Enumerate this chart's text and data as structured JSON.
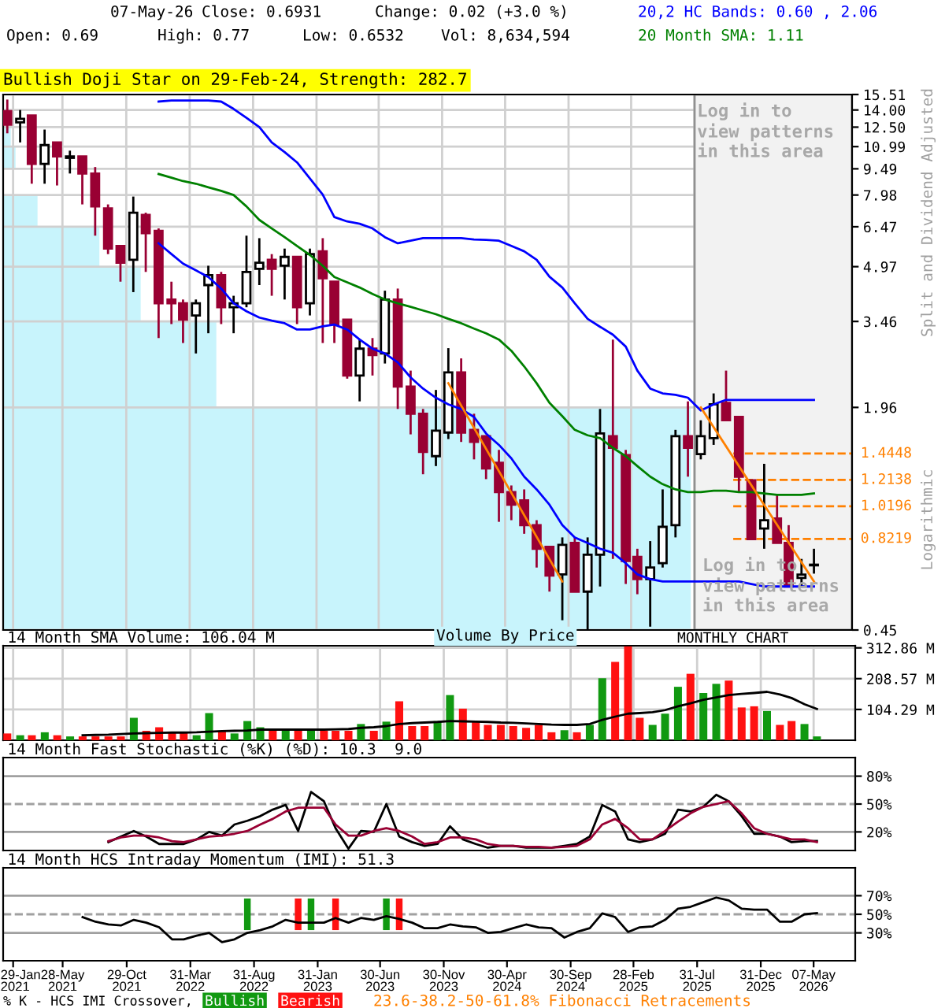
{
  "chart_data": [
    {
      "type": "candlestick",
      "log": true,
      "grid": true,
      "tick_labels": "y",
      "legend": "top right",
      "x": [
        "2021-01-15",
        "2021-02-15",
        "2021-03-15",
        "2021-04-15",
        "2021-05-15",
        "2021-06-15",
        "2021-07-15",
        "2021-08-15",
        "2021-09-15",
        "2021-10-15",
        "2021-11-15",
        "2021-12-15",
        "2022-01-15",
        "2022-02-15",
        "2022-03-15",
        "2022-04-15",
        "2022-05-15",
        "2022-06-15",
        "2022-07-15",
        "2022-08-15",
        "2022-09-15",
        "2022-10-15",
        "2022-11-15",
        "2022-12-15",
        "2023-01-15",
        "2023-02-15",
        "2023-03-15",
        "2023-04-15",
        "2023-05-15",
        "2023-06-15",
        "2023-07-15",
        "2023-08-15",
        "2023-09-15",
        "2023-10-15",
        "2023-11-15",
        "2023-12-15",
        "2024-01-15",
        "2024-02-15",
        "2024-03-15",
        "2024-04-15",
        "2024-05-15",
        "2024-06-15",
        "2024-07-15",
        "2024-08-15",
        "2024-09-15",
        "2024-10-15",
        "2024-11-15",
        "2024-12-15",
        "2025-01-15",
        "2025-02-15",
        "2025-03-15",
        "2025-04-15",
        "2025-05-15",
        "2025-06-15",
        "2025-07-15",
        "2025-08-15",
        "2025-09-15",
        "2025-10-15",
        "2025-11-15",
        "2025-12-15",
        "2026-01-15",
        "2026-02-15",
        "2026-03-15",
        "2026-04-15",
        "2026-05-15"
      ],
      "ohlc": [
        [
          13.9,
          15.0,
          12.0,
          12.7
        ],
        [
          12.9,
          14.0,
          11.3,
          13.2
        ],
        [
          13.5,
          13.5,
          8.6,
          9.8
        ],
        [
          9.8,
          12.3,
          8.6,
          11.1
        ],
        [
          11.3,
          11.3,
          8.5,
          10.3
        ],
        [
          10.2,
          10.7,
          9.2,
          10.3
        ],
        [
          10.3,
          10.3,
          7.5,
          9.2
        ],
        [
          9.2,
          9.6,
          6.1,
          7.4
        ],
        [
          7.3,
          7.5,
          5.4,
          5.6
        ],
        [
          5.7,
          5.7,
          4.5,
          5.1
        ],
        [
          5.2,
          7.9,
          4.2,
          7.1
        ],
        [
          7.0,
          7.1,
          4.8,
          6.2
        ],
        [
          6.3,
          6.4,
          3.1,
          3.9
        ],
        [
          4.0,
          4.5,
          3.4,
          3.9
        ],
        [
          3.9,
          4.0,
          3.0,
          3.5
        ],
        [
          3.6,
          4.0,
          2.8,
          3.9
        ],
        [
          4.4,
          5.0,
          3.2,
          4.7
        ],
        [
          4.7,
          4.8,
          3.4,
          3.8
        ],
        [
          3.8,
          4.1,
          3.2,
          3.9
        ],
        [
          3.9,
          6.1,
          3.8,
          4.8
        ],
        [
          4.9,
          6.0,
          4.4,
          5.1
        ],
        [
          5.2,
          5.4,
          4.1,
          4.9
        ],
        [
          5.0,
          5.6,
          4.0,
          5.3
        ],
        [
          5.3,
          5.3,
          3.4,
          3.8
        ],
        [
          3.9,
          5.6,
          3.6,
          5.4
        ],
        [
          5.5,
          6.0,
          3.0,
          4.6
        ],
        [
          4.5,
          4.5,
          3.0,
          3.4
        ],
        [
          3.5,
          3.5,
          2.37,
          2.42
        ],
        [
          2.42,
          3.07,
          2.04,
          2.89
        ],
        [
          2.89,
          3.1,
          2.42,
          2.77
        ],
        [
          2.8,
          4.24,
          2.62,
          4.0
        ],
        [
          4.0,
          4.3,
          1.94,
          2.25
        ],
        [
          2.25,
          2.5,
          1.64,
          1.88
        ],
        [
          1.88,
          1.94,
          1.26,
          1.46
        ],
        [
          1.42,
          2.2,
          1.33,
          1.68
        ],
        [
          1.66,
          2.9,
          1.59,
          2.47
        ],
        [
          2.47,
          2.71,
          1.56,
          1.66
        ],
        [
          1.69,
          1.88,
          1.39,
          1.56
        ],
        [
          1.62,
          1.62,
          1.22,
          1.31
        ],
        [
          1.36,
          1.48,
          0.92,
          1.12
        ],
        [
          1.12,
          1.17,
          0.93,
          1.03
        ],
        [
          1.06,
          1.14,
          0.85,
          0.9
        ],
        [
          0.9,
          0.93,
          0.68,
          0.77
        ],
        [
          0.78,
          0.78,
          0.58,
          0.645
        ],
        [
          0.65,
          0.83,
          0.48,
          0.79
        ],
        [
          0.8,
          0.83,
          0.58,
          0.58
        ],
        [
          0.58,
          0.83,
          0.45,
          0.74
        ],
        [
          0.74,
          1.94,
          0.6,
          1.65
        ],
        [
          1.62,
          3.07,
          0.72,
          1.5
        ],
        [
          1.43,
          1.48,
          0.61,
          0.71
        ],
        [
          0.73,
          0.77,
          0.57,
          0.63
        ],
        [
          0.63,
          0.81,
          0.46,
          0.68
        ],
        [
          0.7,
          1.14,
          0.68,
          0.89
        ],
        [
          0.9,
          1.69,
          0.83,
          1.62
        ],
        [
          1.62,
          2.04,
          1.24,
          1.5
        ],
        [
          1.44,
          1.8,
          1.39,
          1.62
        ],
        [
          1.6,
          2.15,
          1.53,
          2.0
        ],
        [
          2.02,
          2.5,
          1.8,
          1.8
        ],
        [
          1.84,
          1.84,
          1.12,
          1.24
        ],
        [
          1.21,
          1.21,
          0.82,
          0.82
        ],
        [
          0.88,
          1.35,
          0.77,
          0.93
        ],
        [
          0.94,
          1.1,
          0.8,
          0.8
        ],
        [
          0.8,
          0.9,
          0.596,
          0.6
        ],
        [
          0.635,
          0.72,
          0.596,
          0.649
        ],
        [
          0.69,
          0.77,
          0.6532,
          0.6931
        ]
      ],
      "colors": [
        "#990033",
        "#ffffff",
        "#990033",
        "#ffffff",
        "#990033",
        "#ffffff",
        "#990033",
        "#990033",
        "#990033",
        "#990033",
        "#ffffff",
        "#990033",
        "#990033",
        "#990033",
        "#990033",
        "#ffffff",
        "#ffffff",
        "#990033",
        "#ffffff",
        "#ffffff",
        "#ffffff",
        "#990033",
        "#ffffff",
        "#990033",
        "#ffffff",
        "#990033",
        "#990033",
        "#990033",
        "#ffffff",
        "#990033",
        "#ffffff",
        "#990033",
        "#990033",
        "#990033",
        "#ffffff",
        "#ffffff",
        "#990033",
        "#990033",
        "#990033",
        "#990033",
        "#990033",
        "#990033",
        "#990033",
        "#990033",
        "#ffffff",
        "#990033",
        "#ffffff",
        "#ffffff",
        "#990033",
        "#990033",
        "#990033",
        "#ffffff",
        "#ffffff",
        "#ffffff",
        "#990033",
        "#ffffff",
        "#ffffff",
        "#990033",
        "#990033",
        "#990033",
        "#ffffff",
        "#990033",
        "#990033",
        "#ffffff",
        "#ffffff"
      ],
      "series": [
        {
          "type": "line",
          "name": "20,2 HC Bands: 0.60 , 2.06",
          "color": "#0000ff",
          "x": [
            "2022-01-15",
            "2022-02-15",
            "2022-03-15",
            "2022-04-15",
            "2022-05-15",
            "2022-06-15",
            "2022-07-15",
            "2022-08-15",
            "2022-09-15",
            "2022-10-15",
            "2022-11-15",
            "2022-12-15",
            "2023-01-15",
            "2023-02-15",
            "2023-03-15",
            "2023-04-15",
            "2023-05-15",
            "2023-06-15",
            "2023-07-15",
            "2023-08-15",
            "2023-09-15",
            "2023-10-15",
            "2023-11-15",
            "2023-12-15",
            "2024-01-15",
            "2024-02-15",
            "2024-03-15",
            "2024-04-15",
            "2024-05-15",
            "2024-06-15",
            "2024-07-15",
            "2024-08-15",
            "2024-09-15",
            "2024-10-15",
            "2024-11-15",
            "2024-12-15",
            "2025-01-15",
            "2025-02-15",
            "2025-03-15",
            "2025-04-15",
            "2025-05-15",
            "2025-06-15",
            "2025-07-15",
            "2025-08-15",
            "2025-09-15",
            "2025-10-15",
            "2025-11-15",
            "2025-12-15",
            "2026-01-15",
            "2026-02-15",
            "2026-03-15",
            "2026-04-15",
            "2026-05-15"
          ],
          "values": [
            14.8,
            14.9,
            14.9,
            14.9,
            14.9,
            14.8,
            14.1,
            13.3,
            12.5,
            11.3,
            10.6,
            9.9,
            8.9,
            8.0,
            6.9,
            6.7,
            6.6,
            6.4,
            6.04,
            5.8,
            5.9,
            6.0,
            6.0,
            6.0,
            6.0,
            5.95,
            5.93,
            5.9,
            5.7,
            5.5,
            5.2,
            4.65,
            4.33,
            3.9,
            3.52,
            3.34,
            3.17,
            2.93,
            2.5,
            2.22,
            2.15,
            2.13,
            2.09,
            1.92,
            2.0,
            2.06,
            2.06,
            2.06,
            2.06,
            2.06,
            2.06,
            2.06,
            2.06
          ]
        },
        {
          "type": "line",
          "color": "#0000ff",
          "x": [
            "2022-01-15",
            "2022-02-15",
            "2022-03-15",
            "2022-04-15",
            "2022-05-15",
            "2022-06-15",
            "2022-07-15",
            "2022-08-15",
            "2022-09-15",
            "2022-10-15",
            "2022-11-15",
            "2022-12-15",
            "2023-01-15",
            "2023-02-15",
            "2023-03-15",
            "2023-04-15",
            "2023-05-15",
            "2023-06-15",
            "2023-07-15",
            "2023-08-15",
            "2023-09-15",
            "2023-10-15",
            "2023-11-15",
            "2023-12-15",
            "2024-01-15",
            "2024-02-15",
            "2024-03-15",
            "2024-04-15",
            "2024-05-15",
            "2024-06-15",
            "2024-07-15",
            "2024-08-15",
            "2024-09-15",
            "2024-10-15",
            "2024-11-15",
            "2024-12-15",
            "2025-01-15",
            "2025-02-15",
            "2025-03-15",
            "2025-04-15",
            "2025-05-15",
            "2025-06-15",
            "2025-07-15",
            "2025-08-15",
            "2025-09-15",
            "2025-10-15",
            "2025-11-15",
            "2025-12-15",
            "2026-01-15",
            "2026-02-15",
            "2026-03-15",
            "2026-04-15",
            "2026-05-15"
          ],
          "values": [
            5.8,
            5.4,
            5.07,
            4.85,
            4.64,
            4.3,
            3.9,
            3.7,
            3.55,
            3.48,
            3.42,
            3.28,
            3.28,
            3.35,
            3.39,
            3.28,
            3.07,
            2.89,
            2.8,
            2.64,
            2.39,
            2.22,
            2.09,
            2.0,
            1.94,
            1.84,
            1.65,
            1.53,
            1.4,
            1.24,
            1.14,
            1.03,
            0.9,
            0.83,
            0.8,
            0.77,
            0.75,
            0.7,
            0.65,
            0.63,
            0.62,
            0.62,
            0.62,
            0.62,
            0.62,
            0.62,
            0.62,
            0.61,
            0.6,
            0.6,
            0.6,
            0.6,
            0.6
          ]
        },
        {
          "type": "line",
          "name": "20 Month SMA: 1.11",
          "color": "#008000",
          "x": [
            "2022-01-15",
            "2022-02-15",
            "2022-03-15",
            "2022-04-15",
            "2022-05-15",
            "2022-06-15",
            "2022-07-15",
            "2022-08-15",
            "2022-09-15",
            "2022-10-15",
            "2022-11-15",
            "2022-12-15",
            "2023-01-15",
            "2023-02-15",
            "2023-03-15",
            "2023-04-15",
            "2023-05-15",
            "2023-06-15",
            "2023-07-15",
            "2023-08-15",
            "2023-09-15",
            "2023-10-15",
            "2023-11-15",
            "2023-12-15",
            "2024-01-15",
            "2024-02-15",
            "2024-03-15",
            "2024-04-15",
            "2024-05-15",
            "2024-06-15",
            "2024-07-15",
            "2024-08-15",
            "2024-09-15",
            "2024-10-15",
            "2024-11-15",
            "2024-12-15",
            "2025-01-15",
            "2025-02-15",
            "2025-03-15",
            "2025-04-15",
            "2025-05-15",
            "2025-06-15",
            "2025-07-15",
            "2025-08-15",
            "2025-09-15",
            "2025-10-15",
            "2025-11-15",
            "2025-12-15",
            "2026-01-15",
            "2026-02-15",
            "2026-03-15",
            "2026-04-15",
            "2026-05-15"
          ],
          "values": [
            9.17,
            8.95,
            8.75,
            8.6,
            8.4,
            8.2,
            7.98,
            7.4,
            6.77,
            6.4,
            6.04,
            5.7,
            5.37,
            5.0,
            4.64,
            4.48,
            4.33,
            4.15,
            4.0,
            3.9,
            3.81,
            3.72,
            3.63,
            3.52,
            3.42,
            3.3,
            3.2,
            3.07,
            2.85,
            2.57,
            2.3,
            2.02,
            1.85,
            1.69,
            1.63,
            1.6,
            1.5,
            1.42,
            1.33,
            1.24,
            1.18,
            1.14,
            1.12,
            1.12,
            1.13,
            1.13,
            1.12,
            1.12,
            1.11,
            1.1,
            1.1,
            1.1,
            1.11
          ]
        },
        {
          "type": "line",
          "color": "#ff8000",
          "x": [
            "2023-12-15",
            "2024-09-15"
          ],
          "values": [
            2.3,
            0.62
          ]
        },
        {
          "type": "line",
          "color": "#ff8000",
          "x": [
            "2025-08-15",
            "2026-05-15"
          ],
          "values": [
            1.96,
            0.62
          ]
        }
      ],
      "xlim": [
        "2021-01-05",
        "2026-08-15"
      ],
      "ylim": [
        0.45,
        15.51
      ],
      "xticks": [
        {
          "value": "2021-01-29",
          "label": null
        },
        {
          "value": "2021-05-28",
          "label": null
        },
        {
          "value": "2021-10-29",
          "label": null
        },
        {
          "value": "2022-03-31",
          "label": null
        },
        {
          "value": "2022-08-31",
          "label": null
        },
        {
          "value": "2023-01-31",
          "label": null
        },
        {
          "value": "2023-06-30",
          "label": null
        },
        {
          "value": "2023-11-30",
          "label": null
        },
        {
          "value": "2024-04-30",
          "label": null
        },
        {
          "value": "2024-09-30",
          "label": null
        },
        {
          "value": "2025-02-28",
          "label": null
        },
        {
          "value": "2025-07-31",
          "label": null
        },
        {
          "value": "2025-12-31",
          "label": null
        },
        {
          "value": "2026-05-07",
          "label": null
        }
      ],
      "yticks": [
        0.45,
        1.96,
        3.46,
        4.97,
        6.47,
        7.98,
        9.49,
        10.99,
        {
          "value": 12.5,
          "label": "12.50"
        },
        {
          "value": 14.0,
          "label": "14.00"
        },
        15.51
      ],
      "bands": [
        {
          "axis": "x",
          "from": "2025-07-31",
          "to": "2026-08-15",
          "label": "Log in to\nview patterns\nin this area",
          "color": "#f2f2f2"
        }
      ],
      "ref_lines": [
        {
          "axis": "y",
          "value": 1.4448,
          "label": "1.4448",
          "color": "#ff8000",
          "line_style": "dashed"
        },
        {
          "axis": "y",
          "value": 1.2138,
          "label": "1.2138",
          "color": "#ff8000",
          "line_style": "dashed"
        },
        {
          "axis": "y",
          "value": 1.0196,
          "label": "1.0196",
          "color": "#ff8000",
          "line_style": "dashed"
        },
        {
          "axis": "y",
          "value": 0.8219,
          "label": "0.8219",
          "color": "#ff8000",
          "line_style": "dashed"
        }
      ],
      "annotations": [
        "07-May-26",
        "Close: 0.6931",
        "Change: 0.02 (+3.0 %)",
        "Open: 0.69",
        "High: 0.77",
        "Low: 0.6532",
        "Vol: 8,634,594",
        "Bullish Doji Star on 29-Feb-24, Strength: 282.7",
        "Log in to\nview patterns\nin this area",
        "Split and Dividend Adjusted",
        "Logarithmic",
        "MONTHLY CHART",
        "23.6-38.2-50-61.8% Fibonacci Retracements",
        "Volume By Price"
      ]
    },
    {
      "type": "bar",
      "title": "14 Month SMA Volume: 106.04 M",
      "grid": true,
      "tick_labels": "y",
      "x": [
        "2021-01-15",
        "2021-02-15",
        "2021-03-15",
        "2021-04-15",
        "2021-05-15",
        "2021-06-15",
        "2021-07-15",
        "2021-08-15",
        "2021-09-15",
        "2021-10-15",
        "2021-11-15",
        "2021-12-15",
        "2022-01-15",
        "2022-02-15",
        "2022-03-15",
        "2022-04-15",
        "2022-05-15",
        "2022-06-15",
        "2022-07-15",
        "2022-08-15",
        "2022-09-15",
        "2022-10-15",
        "2022-11-15",
        "2022-12-15",
        "2023-01-15",
        "2023-02-15",
        "2023-03-15",
        "2023-04-15",
        "2023-05-15",
        "2023-06-15",
        "2023-07-15",
        "2023-08-15",
        "2023-09-15",
        "2023-10-15",
        "2023-11-15",
        "2023-12-15",
        "2024-01-15",
        "2024-02-15",
        "2024-03-15",
        "2024-04-15",
        "2024-05-15",
        "2024-06-15",
        "2024-07-15",
        "2024-08-15",
        "2024-09-15",
        "2024-10-15",
        "2024-11-15",
        "2024-12-15",
        "2025-01-15",
        "2025-02-15",
        "2025-03-15",
        "2025-04-15",
        "2025-05-15",
        "2025-06-15",
        "2025-07-15",
        "2025-08-15",
        "2025-09-15",
        "2025-10-15",
        "2025-11-15",
        "2025-12-15",
        "2026-01-15",
        "2026-02-15",
        "2026-03-15",
        "2026-04-15",
        "2026-05-15"
      ],
      "values": [
        23,
        17,
        17,
        27,
        17,
        13,
        13,
        13,
        13,
        13,
        76,
        32,
        44,
        27,
        27,
        17,
        92,
        32,
        23,
        65,
        44,
        32,
        32,
        32,
        36,
        32,
        32,
        32,
        55,
        32,
        63,
        132,
        48,
        48,
        65,
        153,
        107,
        63,
        52,
        52,
        48,
        42,
        52,
        27,
        34,
        27,
        52,
        210,
        265,
        318,
        76,
        52,
        90,
        181,
        225,
        160,
        191,
        202,
        111,
        115,
        99,
        52,
        65,
        55,
        13
      ],
      "colors": [
        "#ff1111",
        "#119911",
        "#ff1111",
        "#119911",
        "#ff1111",
        "#119911",
        "#ff1111",
        "#ff1111",
        "#ff1111",
        "#ff1111",
        "#119911",
        "#ff1111",
        "#ff1111",
        "#ff1111",
        "#ff1111",
        "#119911",
        "#119911",
        "#ff1111",
        "#119911",
        "#119911",
        "#119911",
        "#ff1111",
        "#119911",
        "#ff1111",
        "#119911",
        "#ff1111",
        "#ff1111",
        "#ff1111",
        "#119911",
        "#ff1111",
        "#119911",
        "#ff1111",
        "#ff1111",
        "#ff1111",
        "#119911",
        "#119911",
        "#ff1111",
        "#ff1111",
        "#ff1111",
        "#ff1111",
        "#ff1111",
        "#ff1111",
        "#ff1111",
        "#ff1111",
        "#119911",
        "#ff1111",
        "#119911",
        "#119911",
        "#ff1111",
        "#ff1111",
        "#ff1111",
        "#119911",
        "#119911",
        "#119911",
        "#ff1111",
        "#119911",
        "#119911",
        "#ff1111",
        "#ff1111",
        "#ff1111",
        "#119911",
        "#ff1111",
        "#ff1111",
        "#119911",
        "#119911"
      ],
      "series": [
        {
          "type": "line",
          "color": "#000000",
          "x": [
            "2021-07-15",
            "2021-08-15",
            "2021-09-15",
            "2021-10-15",
            "2021-11-15",
            "2021-12-15",
            "2022-01-15",
            "2022-02-15",
            "2022-03-15",
            "2022-04-15",
            "2022-05-15",
            "2022-06-15",
            "2022-07-15",
            "2022-08-15",
            "2022-09-15",
            "2022-10-15",
            "2022-11-15",
            "2022-12-15",
            "2023-01-15",
            "2023-02-15",
            "2023-03-15",
            "2023-04-15",
            "2023-05-15",
            "2023-06-15",
            "2023-07-15",
            "2023-08-15",
            "2023-09-15",
            "2023-10-15",
            "2023-11-15",
            "2023-12-15",
            "2024-01-15",
            "2024-02-15",
            "2024-03-15",
            "2024-04-15",
            "2024-05-15",
            "2024-06-15",
            "2024-07-15",
            "2024-08-15",
            "2024-09-15",
            "2024-10-15",
            "2024-11-15",
            "2024-12-15",
            "2025-01-15",
            "2025-02-15",
            "2025-03-15",
            "2025-04-15",
            "2025-05-15",
            "2025-06-15",
            "2025-07-15",
            "2025-08-15",
            "2025-09-15",
            "2025-10-15",
            "2025-11-15",
            "2025-12-15",
            "2026-01-15",
            "2026-02-15",
            "2026-03-15",
            "2026-04-15",
            "2026-05-15"
          ],
          "values": [
            17,
            18,
            19,
            21,
            23,
            24,
            25,
            26,
            26,
            27,
            29,
            31,
            32,
            33,
            36,
            36,
            36,
            36,
            36,
            36,
            37,
            38,
            42,
            44,
            48,
            55,
            58,
            60,
            62,
            65,
            64,
            63,
            62,
            60,
            59,
            57,
            55,
            53,
            52,
            52,
            55,
            69,
            80,
            90,
            92,
            95,
            102,
            115,
            125,
            137,
            145,
            153,
            157,
            160,
            164,
            155,
            143,
            122,
            106
          ]
        }
      ],
      "xlim": [
        "2021-01-05",
        "2026-08-15"
      ],
      "ylim": [
        0,
        320
      ],
      "xticks": [
        {
          "value": "2021-01-29",
          "label": null
        },
        {
          "value": "2021-05-28",
          "label": null
        },
        {
          "value": "2021-10-29",
          "label": null
        },
        {
          "value": "2022-03-31",
          "label": null
        },
        {
          "value": "2022-08-31",
          "label": null
        },
        {
          "value": "2023-01-31",
          "label": null
        },
        {
          "value": "2023-06-30",
          "label": null
        },
        {
          "value": "2023-11-30",
          "label": null
        },
        {
          "value": "2024-04-30",
          "label": null
        },
        {
          "value": "2024-09-30",
          "label": null
        },
        {
          "value": "2025-02-28",
          "label": null
        },
        {
          "value": "2025-07-31",
          "label": null
        },
        {
          "value": "2025-12-31",
          "label": null
        },
        {
          "value": "2026-05-07",
          "label": null
        }
      ],
      "yticks": [
        {
          "value": 104.29,
          "label": "104.29 M"
        },
        {
          "value": 208.57,
          "label": "208.57 M"
        },
        {
          "value": 312.86,
          "label": "312.86 M"
        }
      ]
    },
    {
      "type": "line",
      "title": "14 Month Fast Stochastic (%K) (%D): 10.3  9.0",
      "tick_labels": "y",
      "series": [
        {
          "color": "#000000",
          "x": [
            "2021-09-15",
            "2021-10-15",
            "2021-11-15",
            "2021-12-15",
            "2022-01-15",
            "2022-02-15",
            "2022-03-15",
            "2022-04-15",
            "2022-05-15",
            "2022-06-15",
            "2022-07-15",
            "2022-08-15",
            "2022-09-15",
            "2022-10-15",
            "2022-11-15",
            "2022-12-15",
            "2023-01-15",
            "2023-02-15",
            "2023-03-15",
            "2023-04-15",
            "2023-05-15",
            "2023-06-15",
            "2023-07-15",
            "2023-08-15",
            "2023-09-15",
            "2023-10-15",
            "2023-11-15",
            "2023-12-15",
            "2024-01-15",
            "2024-02-15",
            "2024-03-15",
            "2024-04-15",
            "2024-05-15",
            "2024-06-15",
            "2024-07-15",
            "2024-08-15",
            "2024-09-15",
            "2024-10-15",
            "2024-11-15",
            "2024-12-15",
            "2025-01-15",
            "2025-02-15",
            "2025-03-15",
            "2025-04-15",
            "2025-05-15",
            "2025-06-15",
            "2025-07-15",
            "2025-08-15",
            "2025-09-15",
            "2025-10-15",
            "2025-11-15",
            "2025-12-15",
            "2026-01-15",
            "2026-02-15",
            "2026-03-15",
            "2026-04-15",
            "2026-05-15"
          ],
          "values": [
            9,
            15,
            21,
            15,
            7,
            7,
            7,
            12,
            20,
            16,
            28,
            32,
            37,
            44,
            49,
            21,
            63,
            53,
            24,
            2,
            21,
            20,
            50,
            15,
            9,
            5,
            7,
            26,
            12,
            7,
            3,
            5,
            5,
            3,
            3,
            3,
            5,
            7,
            15,
            49,
            42,
            12,
            9,
            12,
            18,
            44,
            42,
            47,
            60,
            53,
            37,
            18,
            18,
            15,
            9,
            10,
            10.3
          ]
        },
        {
          "color": "#990033",
          "x": [
            "2021-09-15",
            "2021-10-15",
            "2021-11-15",
            "2021-12-15",
            "2022-01-15",
            "2022-02-15",
            "2022-03-15",
            "2022-04-15",
            "2022-05-15",
            "2022-06-15",
            "2022-07-15",
            "2022-08-15",
            "2022-09-15",
            "2022-10-15",
            "2022-11-15",
            "2022-12-15",
            "2023-01-15",
            "2023-02-15",
            "2023-03-15",
            "2023-04-15",
            "2023-05-15",
            "2023-06-15",
            "2023-07-15",
            "2023-08-15",
            "2023-09-15",
            "2023-10-15",
            "2023-11-15",
            "2023-12-15",
            "2024-01-15",
            "2024-02-15",
            "2024-03-15",
            "2024-04-15",
            "2024-05-15",
            "2024-06-15",
            "2024-07-15",
            "2024-08-15",
            "2024-09-15",
            "2024-10-15",
            "2024-11-15",
            "2024-12-15",
            "2025-01-15",
            "2025-02-15",
            "2025-03-15",
            "2025-04-15",
            "2025-05-15",
            "2025-06-15",
            "2025-07-15",
            "2025-08-15",
            "2025-09-15",
            "2025-10-15",
            "2025-11-15",
            "2025-12-15",
            "2026-01-15",
            "2026-02-15",
            "2026-03-15",
            "2026-04-15",
            "2026-05-15"
          ],
          "values": [
            10,
            14,
            16,
            16,
            14,
            10,
            9,
            12,
            15,
            16,
            18,
            21,
            28,
            34,
            42,
            46,
            46,
            46,
            28,
            16,
            16,
            21,
            24,
            21,
            15,
            7,
            9,
            14,
            14,
            12,
            7,
            5,
            5,
            4,
            4,
            3,
            4,
            5,
            12,
            28,
            34,
            24,
            12,
            12,
            21,
            31,
            40,
            47,
            50,
            53,
            40,
            24,
            18,
            15,
            12,
            12,
            9
          ]
        }
      ],
      "xlim": [
        "2021-01-05",
        "2026-08-15"
      ],
      "ylim": [
        0,
        100
      ],
      "yticks": [
        {
          "value": 20,
          "label": "20%"
        },
        {
          "value": 50,
          "label": "50%"
        },
        {
          "value": 80,
          "label": "80%"
        }
      ],
      "ref_lines": [
        {
          "axis": "y",
          "value": 20,
          "color": "#a0a0a0",
          "line_style": "solid"
        },
        {
          "axis": "y",
          "value": 50,
          "color": "#a0a0a0",
          "line_style": "dashed"
        },
        {
          "axis": "y",
          "value": 80,
          "color": "#a0a0a0",
          "line_style": "solid"
        }
      ]
    },
    {
      "type": "line",
      "title": "14 Month HCS Intraday Momentum (IMI): 51.3",
      "legend": "bottom",
      "legend_title": "% K - HCS IMI Crossover,",
      "series": [
        {
          "type": "bar",
          "name": "Bullish",
          "color": "#119911",
          "x": [
            "2022-08-15",
            "2023-01-15",
            "2023-07-15"
          ],
          "base": [
            33,
            33,
            33
          ],
          "values": [
            34,
            34,
            34
          ]
        },
        {
          "type": "bar",
          "name": "Bearish",
          "color": "#ff1111",
          "x": [
            "2022-12-15",
            "2023-03-15",
            "2023-08-15"
          ],
          "base": [
            33,
            33,
            33
          ],
          "values": [
            34,
            34,
            34
          ]
        },
        {
          "type": "line",
          "color": "#000000",
          "x": [
            "2021-07-15",
            "2021-08-15",
            "2021-09-15",
            "2021-10-15",
            "2021-11-15",
            "2021-12-15",
            "2022-01-15",
            "2022-02-15",
            "2022-03-15",
            "2022-04-15",
            "2022-05-15",
            "2022-06-15",
            "2022-07-15",
            "2022-08-15",
            "2022-09-15",
            "2022-10-15",
            "2022-11-15",
            "2022-12-15",
            "2023-01-15",
            "2023-02-15",
            "2023-03-15",
            "2023-04-15",
            "2023-05-15",
            "2023-06-15",
            "2023-07-15",
            "2023-08-15",
            "2023-09-15",
            "2023-10-15",
            "2023-11-15",
            "2023-12-15",
            "2024-01-15",
            "2024-02-15",
            "2024-03-15",
            "2024-04-15",
            "2024-05-15",
            "2024-06-15",
            "2024-07-15",
            "2024-08-15",
            "2024-09-15",
            "2024-10-15",
            "2024-11-15",
            "2024-12-15",
            "2025-01-15",
            "2025-02-15",
            "2025-03-15",
            "2025-04-15",
            "2025-05-15",
            "2025-06-15",
            "2025-07-15",
            "2025-08-15",
            "2025-09-15",
            "2025-10-15",
            "2025-11-15",
            "2025-12-15",
            "2026-01-15",
            "2026-02-15",
            "2026-03-15",
            "2026-04-15",
            "2026-05-15"
          ],
          "values": [
            47,
            42,
            39,
            38,
            44,
            41,
            36,
            23,
            23,
            27,
            30,
            20,
            23,
            30,
            33,
            37,
            44,
            41,
            41,
            41,
            46,
            41,
            46,
            44,
            48,
            45,
            41,
            35,
            35,
            39,
            37,
            36,
            30,
            31,
            35,
            39,
            36,
            35,
            25,
            31,
            35,
            51,
            47,
            31,
            36,
            37,
            44,
            56,
            58,
            63,
            68,
            65,
            56,
            55,
            55,
            42,
            42,
            50,
            51.3
          ]
        }
      ],
      "xlim": [
        "2021-01-05",
        "2026-08-15"
      ],
      "ylim": [
        0,
        100
      ],
      "xticks": [
        {
          "value": "2021-01-29",
          "label": "29-Jan\n2021"
        },
        {
          "value": "2021-05-28",
          "label": "28-May\n2021"
        },
        {
          "value": "2021-10-29",
          "label": "29-Oct\n2021"
        },
        {
          "value": "2022-03-31",
          "label": "31-Mar\n2022"
        },
        {
          "value": "2022-08-31",
          "label": "31-Aug\n2022"
        },
        {
          "value": "2023-01-31",
          "label": "31-Jan\n2023"
        },
        {
          "value": "2023-06-30",
          "label": "30-Jun\n2023"
        },
        {
          "value": "2023-11-30",
          "label": "30-Nov\n2023"
        },
        {
          "value": "2024-04-30",
          "label": "30-Apr\n2024"
        },
        {
          "value": "2024-09-30",
          "label": "30-Sep\n2024"
        },
        {
          "value": "2025-02-28",
          "label": "28-Feb\n2025"
        },
        {
          "value": "2025-07-31",
          "label": "31-Jul\n2025"
        },
        {
          "value": "2025-12-31",
          "label": "31-Dec\n2025"
        },
        {
          "value": "2026-05-07",
          "label": "07-May\n2026"
        }
      ],
      "yticks": [
        {
          "value": 30,
          "label": "30%"
        },
        {
          "value": 50,
          "label": "50%"
        },
        {
          "value": 70,
          "label": "70%"
        }
      ],
      "ref_lines": [
        {
          "axis": "y",
          "value": 30,
          "color": "#a0a0a0",
          "line_style": "solid"
        },
        {
          "axis": "y",
          "value": 50,
          "color": "#a0a0a0",
          "line_style": "dashed"
        },
        {
          "axis": "y",
          "value": 70,
          "color": "#a0a0a0",
          "line_style": "solid"
        }
      ]
    }
  ]
}
